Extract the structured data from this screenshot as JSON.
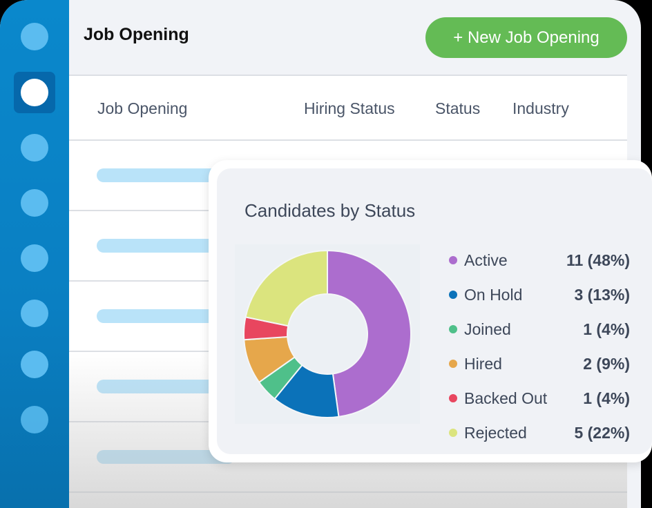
{
  "header": {
    "title": "Job Opening",
    "new_button_label": "+ New Job Opening"
  },
  "sidebar": {
    "items": [
      {
        "name": "nav-item-1",
        "active": false
      },
      {
        "name": "nav-item-2",
        "active": true
      },
      {
        "name": "nav-item-3",
        "active": false
      },
      {
        "name": "nav-item-4",
        "active": false
      },
      {
        "name": "nav-item-5",
        "active": false
      },
      {
        "name": "nav-item-6",
        "active": false
      },
      {
        "name": "nav-item-7",
        "active": false
      },
      {
        "name": "nav-item-8",
        "active": false
      }
    ]
  },
  "table": {
    "columns": [
      "Job Opening",
      "Hiring Status",
      "Status",
      "Industry"
    ],
    "row_count": 5
  },
  "card": {
    "title": "Candidates by Status",
    "legend": [
      {
        "label": "Active",
        "value": "11 (48%)",
        "color": "#ac6dce"
      },
      {
        "label": "On Hold",
        "value": "3 (13%)",
        "color": "#0b72b9"
      },
      {
        "label": "Joined",
        "value": "1 (4%)",
        "color": "#4fc08a"
      },
      {
        "label": "Hired",
        "value": "2 (9%)",
        "color": "#e6a74b"
      },
      {
        "label": "Backed Out",
        "value": "1 (4%)",
        "color": "#e8465f"
      },
      {
        "label": "Rejected",
        "value": "5 (22%)",
        "color": "#dbe47e"
      }
    ]
  },
  "chart_data": {
    "type": "pie",
    "title": "Candidates by Status",
    "categories": [
      "Active",
      "On Hold",
      "Joined",
      "Hired",
      "Backed Out",
      "Rejected"
    ],
    "values": [
      11,
      3,
      1,
      2,
      1,
      5
    ],
    "percentages": [
      48,
      13,
      4,
      9,
      4,
      22
    ],
    "colors": [
      "#ac6dce",
      "#0b72b9",
      "#4fc08a",
      "#e6a74b",
      "#e8465f",
      "#dbe47e"
    ],
    "donut": true,
    "legend_position": "right"
  }
}
